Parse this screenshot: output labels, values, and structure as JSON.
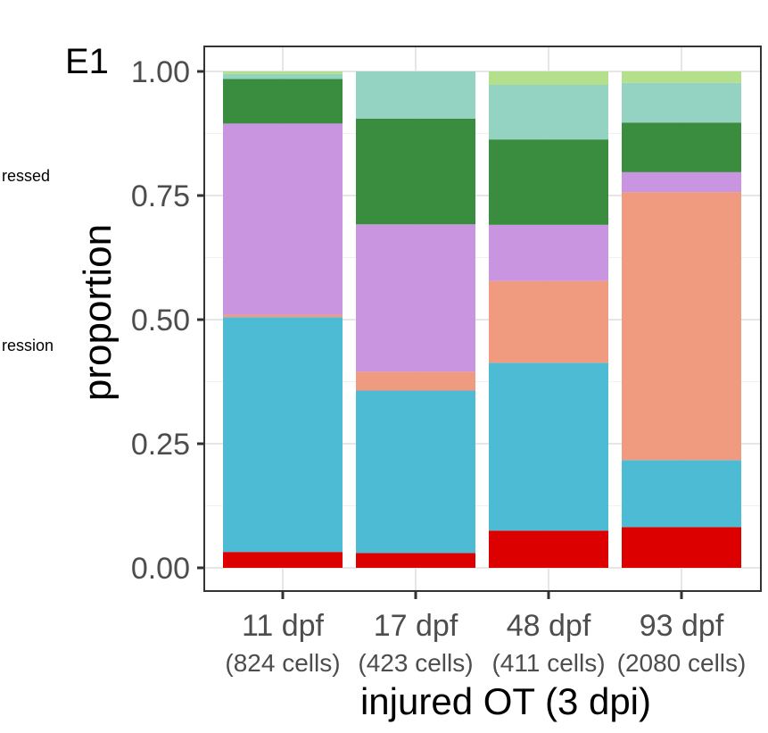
{
  "chart_data": {
    "type": "stacked-bar",
    "panel_label": "E1",
    "legend_fragments": [
      "ressed",
      "ression"
    ],
    "title": "",
    "xlabel": "injured OT (3 dpi)",
    "ylabel": "proportion",
    "ylim": [
      0,
      1
    ],
    "y_ticks": [
      {
        "value": 0.0,
        "label": "0.00"
      },
      {
        "value": 0.25,
        "label": "0.25"
      },
      {
        "value": 0.5,
        "label": "0.50"
      },
      {
        "value": 0.75,
        "label": "0.75"
      },
      {
        "value": 1.0,
        "label": "1.00"
      }
    ],
    "grid": true,
    "categories": [
      {
        "label": "11 dpf",
        "sublabel": "(824 cells)"
      },
      {
        "label": "17 dpf",
        "sublabel": "(423 cells)"
      },
      {
        "label": "48 dpf",
        "sublabel": "(411 cells)"
      },
      {
        "label": "93 dpf",
        "sublabel": "(2080 cells)"
      }
    ],
    "series": [
      {
        "name": "red",
        "color": "#dc0000",
        "values": [
          0.032,
          0.03,
          0.075,
          0.082
        ]
      },
      {
        "name": "blue",
        "color": "#4ebbd5",
        "values": [
          0.473,
          0.327,
          0.338,
          0.135
        ]
      },
      {
        "name": "salmon",
        "color": "#f09b80",
        "values": [
          0.005,
          0.038,
          0.165,
          0.54
        ]
      },
      {
        "name": "lavender",
        "color": "#c994e0",
        "values": [
          0.385,
          0.297,
          0.113,
          0.04
        ]
      },
      {
        "name": "dark green",
        "color": "#3a8c3f",
        "values": [
          0.09,
          0.213,
          0.172,
          0.1
        ]
      },
      {
        "name": "mint",
        "color": "#94d2c2",
        "values": [
          0.01,
          0.095,
          0.11,
          0.08
        ]
      },
      {
        "name": "light green",
        "color": "#b4e08c",
        "values": [
          0.005,
          0.0,
          0.027,
          0.023
        ]
      }
    ]
  }
}
